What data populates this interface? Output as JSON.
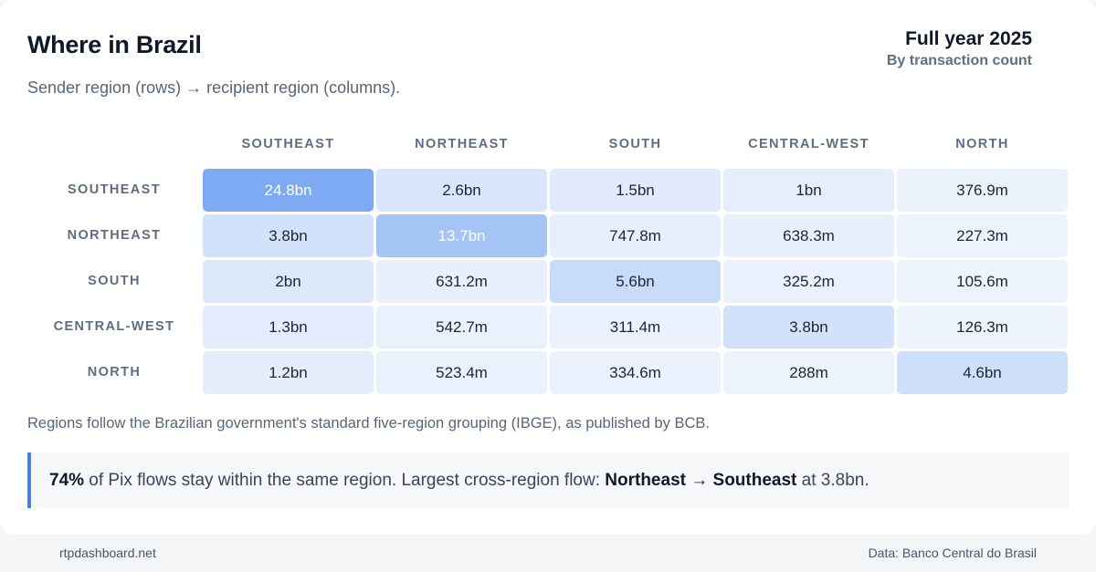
{
  "title": "Where in Brazil",
  "period": "Full year 2025",
  "metric": "By transaction count",
  "subtitle": "Sender region (rows) → recipient region (columns).",
  "chart_data": {
    "type": "heatmap",
    "columns": [
      "SOUTHEAST",
      "NORTHEAST",
      "SOUTH",
      "CENTRAL-WEST",
      "NORTH"
    ],
    "rows": [
      "SOUTHEAST",
      "NORTHEAST",
      "SOUTH",
      "CENTRAL-WEST",
      "NORTH"
    ],
    "labels": [
      [
        "24.8bn",
        "2.6bn",
        "1.5bn",
        "1bn",
        "376.9m"
      ],
      [
        "3.8bn",
        "13.7bn",
        "747.8m",
        "638.3m",
        "227.3m"
      ],
      [
        "2bn",
        "631.2m",
        "5.6bn",
        "325.2m",
        "105.6m"
      ],
      [
        "1.3bn",
        "542.7m",
        "311.4m",
        "3.8bn",
        "126.3m"
      ],
      [
        "1.2bn",
        "523.4m",
        "334.6m",
        "288m",
        "4.6bn"
      ]
    ],
    "values": [
      [
        24.8,
        2.6,
        1.5,
        1.0,
        0.3769
      ],
      [
        3.8,
        13.7,
        0.7478,
        0.6383,
        0.2273
      ],
      [
        2.0,
        0.6312,
        5.6,
        0.3252,
        0.1056
      ],
      [
        1.3,
        0.5427,
        0.3114,
        3.8,
        0.1263
      ],
      [
        1.2,
        0.5234,
        0.3346,
        0.288,
        4.6
      ]
    ],
    "unit": "bn",
    "colors": {
      "low": "#f1f6fd",
      "high": "#7eaaf3"
    }
  },
  "note": "Regions follow the Brazilian government's standard five-region grouping (IBGE), as published by BCB.",
  "callout": {
    "pct": "74%",
    "text1": " of Pix flows stay within the same region. Largest cross-region flow: ",
    "flow": "Northeast → Southeast",
    "text2": " at 3.8bn."
  },
  "footer": {
    "site": "rtpdashboard.net",
    "source": "Data: Banco Central do Brasil"
  }
}
